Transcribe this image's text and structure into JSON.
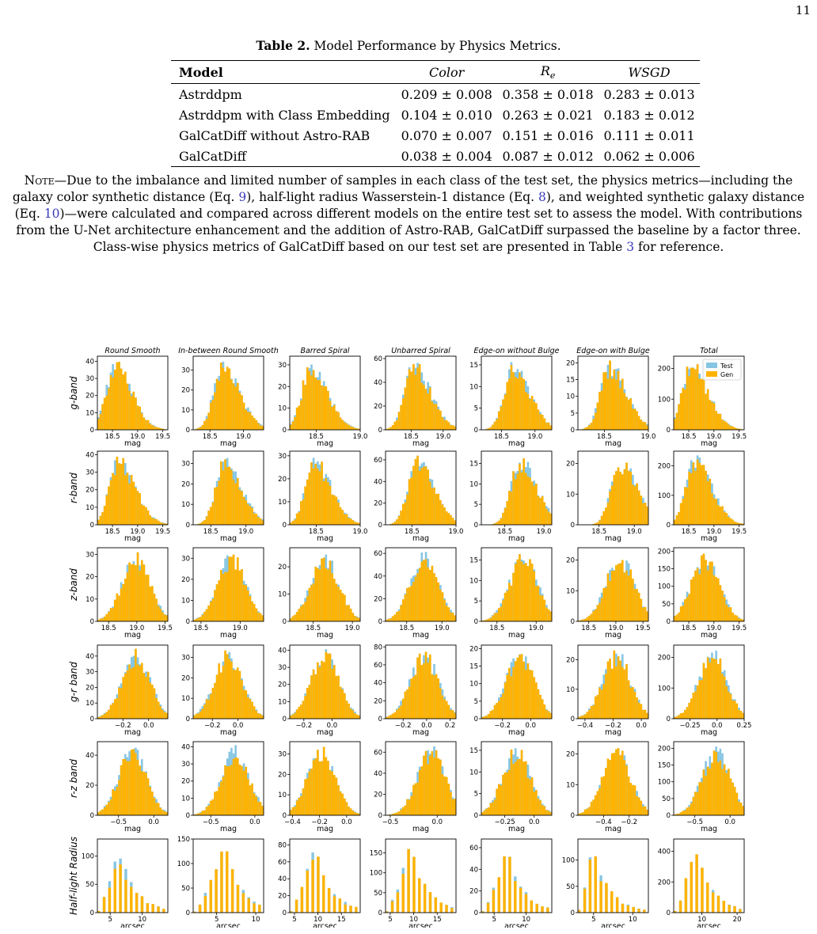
{
  "page_number": "11",
  "table": {
    "caption_label": "Table 2.",
    "caption_text": "Model Performance by Physics Metrics.",
    "headers": [
      "Model",
      "Color",
      "R",
      "e",
      "WSGD"
    ],
    "rows": [
      {
        "model": "Astrddpm",
        "color": "0.209 ± 0.008",
        "re": "0.358 ± 0.018",
        "wsgd": "0.283 ± 0.013"
      },
      {
        "model": "Astrddpm with Class Embedding",
        "color": "0.104 ± 0.010",
        "re": "0.263 ± 0.021",
        "wsgd": "0.183 ± 0.012"
      },
      {
        "model": "GalCatDiff without Astro-RAB",
        "color": "0.070 ± 0.007",
        "re": "0.151 ± 0.016",
        "wsgd": "0.111 ± 0.011"
      },
      {
        "model": "GalCatDiff",
        "color": "0.038 ± 0.004",
        "re": "0.087 ± 0.012",
        "wsgd": "0.062 ± 0.006"
      }
    ]
  },
  "note": {
    "label": "Note",
    "t1": "—Due to the imbalance and limited number of samples in each class of the test set, the physics metrics—including the galaxy color synthetic distance (Eq. ",
    "ref1": "9",
    "t2": "), half-light radius Wasserstein-1 distance (Eq. ",
    "ref2": "8",
    "t3": "), and weighted synthetic galaxy distance (Eq. ",
    "ref3": "10",
    "t4": ")—were calculated and compared across different models on the entire test set to assess the model. With contributions from the U-Net architecture enhancement and the addition of Astro-RAB, GalCatDiff surpassed the baseline by a factor three. Class-wise physics metrics of GalCatDiff based on our test set are presented in Table ",
    "ref4": "3",
    "t5": " for reference."
  },
  "chart_data": {
    "type": "histogram-grid",
    "columns": [
      "Round Smooth",
      "In-between Round Smooth",
      "Barred Spiral",
      "Unbarred Spiral",
      "Edge-on without Bulge",
      "Edge-on with Bulge",
      "Total"
    ],
    "legend": [
      "Test",
      "Gen"
    ],
    "colors": {
      "Test": "#87c6e3",
      "Gen": "#ffb300"
    },
    "rows": [
      {
        "ylabel": "g-band",
        "xlabel": "mag",
        "shape": "skew",
        "panels": [
          {
            "xlim": [
              18.2,
              19.6
            ],
            "xticks": [
              18.5,
              19.0,
              19.5
            ],
            "ymax": 43,
            "yticks": [
              0,
              10,
              20,
              30,
              40
            ],
            "peak": 0.25
          },
          {
            "xlim": [
              18.25,
              19.3
            ],
            "xticks": [
              18.5,
              19.0
            ],
            "ymax": 37,
            "yticks": [
              0,
              10,
              20,
              30
            ],
            "peak": 0.42
          },
          {
            "xlim": [
              18.2,
              19.0
            ],
            "xticks": [
              18.5,
              19.0
            ],
            "ymax": 34,
            "yticks": [
              0,
              10,
              20,
              30
            ],
            "peak": 0.3
          },
          {
            "xlim": [
              18.1,
              19.2
            ],
            "xticks": [
              18.5,
              19.0
            ],
            "ymax": 62,
            "yticks": [
              0,
              20,
              40,
              60
            ],
            "peak": 0.4
          },
          {
            "xlim": [
              18.2,
              19.25
            ],
            "xticks": [
              18.5,
              19.0
            ],
            "ymax": 17,
            "yticks": [
              0,
              5,
              10,
              15
            ],
            "peak": 0.45
          },
          {
            "xlim": [
              18.2,
              19.0
            ],
            "xticks": [
              18.5,
              19.0
            ],
            "ymax": 22,
            "yticks": [
              0,
              5,
              10,
              15,
              20
            ],
            "peak": 0.45
          },
          {
            "xlim": [
              18.2,
              19.6
            ],
            "xticks": [
              18.5,
              19.0,
              19.5
            ],
            "ymax": 240,
            "yticks": [
              0,
              100,
              200
            ],
            "peak": 0.25
          }
        ]
      },
      {
        "ylabel": "r-band",
        "xlabel": "mag",
        "shape": "skew",
        "panels": [
          {
            "xlim": [
              18.2,
              19.6
            ],
            "xticks": [
              18.5,
              19.0,
              19.5
            ],
            "ymax": 42,
            "yticks": [
              0,
              10,
              20,
              30,
              40
            ],
            "peak": 0.3
          },
          {
            "xlim": [
              18.25,
              19.25
            ],
            "xticks": [
              18.5,
              19.0
            ],
            "ymax": 36,
            "yticks": [
              0,
              10,
              20,
              30
            ],
            "peak": 0.45
          },
          {
            "xlim": [
              18.2,
              19.0
            ],
            "xticks": [
              18.5,
              19.0
            ],
            "ymax": 32,
            "yticks": [
              0,
              10,
              20,
              30
            ],
            "peak": 0.35
          },
          {
            "xlim": [
              18.2,
              19.0
            ],
            "xticks": [
              18.5,
              19.0
            ],
            "ymax": 68,
            "yticks": [
              0,
              20,
              40,
              60
            ],
            "peak": 0.45
          },
          {
            "xlim": [
              18.2,
              19.1
            ],
            "xticks": [
              18.5,
              19.0
            ],
            "ymax": 18,
            "yticks": [
              0,
              5,
              10,
              15
            ],
            "peak": 0.55
          },
          {
            "xlim": [
              18.2,
              19.2
            ],
            "xticks": [
              18.5,
              19.0
            ],
            "ymax": 24,
            "yticks": [
              0,
              10,
              20
            ],
            "peak": 0.6
          },
          {
            "xlim": [
              18.2,
              19.6
            ],
            "xticks": [
              18.5,
              19.0,
              19.5
            ],
            "ymax": 250,
            "yticks": [
              0,
              100,
              200
            ],
            "peak": 0.3
          }
        ]
      },
      {
        "ylabel": "z-band",
        "xlabel": "mag",
        "shape": "normal",
        "panels": [
          {
            "xlim": [
              18.3,
              19.55
            ],
            "xticks": [
              18.5,
              19.0,
              19.5
            ],
            "ymax": 33,
            "yticks": [
              0,
              10,
              20,
              30
            ],
            "peak": 0.55
          },
          {
            "xlim": [
              18.4,
              19.3
            ],
            "xticks": [
              18.5,
              19.0
            ],
            "ymax": 35,
            "yticks": [
              0,
              10,
              20,
              30
            ],
            "peak": 0.55
          },
          {
            "xlim": [
              18.2,
              19.1
            ],
            "xticks": [
              18.5,
              19.0
            ],
            "ymax": 27,
            "yticks": [
              0,
              10,
              20
            ],
            "peak": 0.5
          },
          {
            "xlim": [
              18.2,
              19.2
            ],
            "xticks": [
              18.5,
              19.0
            ],
            "ymax": 65,
            "yticks": [
              0,
              20,
              40,
              60
            ],
            "peak": 0.55
          },
          {
            "xlim": [
              18.3,
              19.2
            ],
            "xticks": [
              18.5,
              19.0
            ],
            "ymax": 18,
            "yticks": [
              0,
              5,
              10,
              15
            ],
            "peak": 0.6
          },
          {
            "xlim": [
              18.3,
              19.6
            ],
            "xticks": [
              18.5,
              19.0,
              19.5
            ],
            "ymax": 24,
            "yticks": [
              0,
              10,
              20
            ],
            "peak": 0.6
          },
          {
            "xlim": [
              18.2,
              19.6
            ],
            "xticks": [
              18.5,
              19.0,
              19.5
            ],
            "ymax": 210,
            "yticks": [
              0,
              50,
              100,
              150,
              200
            ],
            "peak": 0.45
          }
        ]
      },
      {
        "ylabel": "g-r band",
        "xlabel": "mag",
        "shape": "normal",
        "panels": [
          {
            "xlim": [
              -0.4,
              0.15
            ],
            "xticks": [
              -0.2,
              0.0
            ],
            "ymax": 47,
            "yticks": [
              0,
              10,
              20,
              30,
              40
            ],
            "peak": 0.55
          },
          {
            "xlim": [
              -0.35,
              0.2
            ],
            "xticks": [
              -0.2,
              0.0
            ],
            "ymax": 36,
            "yticks": [
              0,
              10,
              20,
              30
            ],
            "peak": 0.5
          },
          {
            "xlim": [
              -0.3,
              0.2
            ],
            "xticks": [
              -0.2,
              0.0
            ],
            "ymax": 43,
            "yticks": [
              0,
              10,
              20,
              30,
              40
            ],
            "peak": 0.5
          },
          {
            "xlim": [
              -0.35,
              0.25
            ],
            "xticks": [
              -0.2,
              0.0,
              0.2
            ],
            "ymax": 82,
            "yticks": [
              0,
              20,
              40,
              60,
              80
            ],
            "peak": 0.55
          },
          {
            "xlim": [
              -0.35,
              0.15
            ],
            "xticks": [
              -0.2,
              0.0
            ],
            "ymax": 21,
            "yticks": [
              0,
              5,
              10,
              15,
              20
            ],
            "peak": 0.55
          },
          {
            "xlim": [
              -0.45,
              0.05
            ],
            "xticks": [
              -0.4,
              -0.2,
              0.0
            ],
            "ymax": 25,
            "yticks": [
              0,
              10,
              20
            ],
            "peak": 0.55
          },
          {
            "xlim": [
              -0.4,
              0.25
            ],
            "xticks": [
              -0.25,
              0.0,
              0.25
            ],
            "ymax": 240,
            "yticks": [
              0,
              100,
              200
            ],
            "peak": 0.55
          }
        ]
      },
      {
        "ylabel": "r-z band",
        "xlabel": "mag",
        "shape": "normal",
        "panels": [
          {
            "xlim": [
              -0.8,
              0.2
            ],
            "xticks": [
              -0.5,
              0.0
            ],
            "ymax": 49,
            "yticks": [
              0,
              20,
              40
            ],
            "peak": 0.5
          },
          {
            "xlim": [
              -0.7,
              0.1
            ],
            "xticks": [
              -0.5,
              0.0
            ],
            "ymax": 43,
            "yticks": [
              0,
              10,
              20,
              30,
              40
            ],
            "peak": 0.6
          },
          {
            "xlim": [
              -0.42,
              0.1
            ],
            "xticks": [
              -0.4,
              -0.2,
              0.0
            ],
            "ymax": 36,
            "yticks": [
              0,
              10,
              20,
              30
            ],
            "peak": 0.45
          },
          {
            "xlim": [
              -0.55,
              0.2
            ],
            "xticks": [
              -0.5,
              0.0
            ],
            "ymax": 70,
            "yticks": [
              0,
              20,
              40,
              60
            ],
            "peak": 0.65
          },
          {
            "xlim": [
              -0.45,
              0.15
            ],
            "xticks": [
              -0.25,
              0.0
            ],
            "ymax": 17,
            "yticks": [
              0,
              5,
              10,
              15
            ],
            "peak": 0.5
          },
          {
            "xlim": [
              -0.6,
              -0.05
            ],
            "xticks": [
              -0.4,
              -0.2
            ],
            "ymax": 24,
            "yticks": [
              0,
              10,
              20
            ],
            "peak": 0.55
          },
          {
            "xlim": [
              -0.8,
              0.2
            ],
            "xticks": [
              -0.5,
              0.0
            ],
            "ymax": 220,
            "yticks": [
              0,
              50,
              100,
              150,
              200
            ],
            "peak": 0.6
          }
        ]
      },
      {
        "ylabel": "Half-light Radius",
        "xlabel": "arcsec",
        "shape": "radius",
        "panels": [
          {
            "xlim": [
              3,
              14
            ],
            "xticks": [
              5,
              10
            ],
            "ymax": 130,
            "yticks": [
              0,
              50,
              100
            ],
            "peak": 0.3
          },
          {
            "xlim": [
              2,
              11
            ],
            "xticks": [
              5,
              10
            ],
            "ymax": 150,
            "yticks": [
              0,
              50,
              100,
              150
            ],
            "peak": 0.45
          },
          {
            "xlim": [
              4,
              19
            ],
            "xticks": [
              5,
              10,
              15
            ],
            "ymax": 87,
            "yticks": [
              0,
              20,
              40,
              60,
              80
            ],
            "peak": 0.35
          },
          {
            "xlim": [
              4,
              19
            ],
            "xticks": [
              5,
              10,
              15
            ],
            "ymax": 185,
            "yticks": [
              0,
              50,
              100,
              150
            ],
            "peak": 0.35
          },
          {
            "xlim": [
              3,
              14
            ],
            "xticks": [
              5,
              10
            ],
            "ymax": 68,
            "yticks": [
              0,
              20,
              40,
              60
            ],
            "peak": 0.35
          },
          {
            "xlim": [
              3,
              12
            ],
            "xticks": [
              5,
              10
            ],
            "ymax": 140,
            "yticks": [
              0,
              50,
              100
            ],
            "peak": 0.2
          },
          {
            "xlim": [
              2,
              22
            ],
            "xticks": [
              10,
              20
            ],
            "ymax": 480,
            "yticks": [
              0,
              200,
              400
            ],
            "peak": 0.3
          }
        ]
      }
    ]
  }
}
